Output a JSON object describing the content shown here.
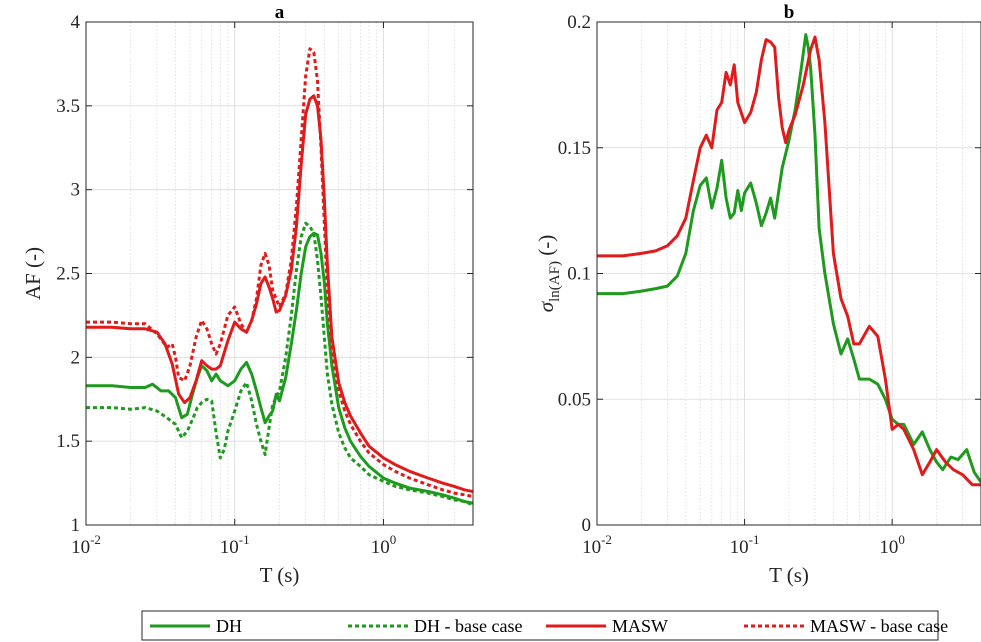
{
  "chart_data": [
    {
      "type": "line",
      "title": "a",
      "xlabel": "T (s)",
      "ylabel": "AF (-)",
      "xscale": "log",
      "xlim": [
        0.01,
        4
      ],
      "ylim": [
        1,
        4
      ],
      "xticks": [
        {
          "base": "10",
          "exp": "-2",
          "value": 0.01
        },
        {
          "base": "10",
          "exp": "-1",
          "value": 0.1
        },
        {
          "base": "10",
          "exp": "0",
          "value": 1
        }
      ],
      "yticks": [
        "1",
        "1.5",
        "2",
        "2.5",
        "3",
        "3.5",
        "4"
      ],
      "grid": true,
      "series": [
        {
          "name": "DH",
          "color": "#1e9a1e",
          "dashed": false,
          "x": [
            0.01,
            0.015,
            0.02,
            0.025,
            0.028,
            0.032,
            0.036,
            0.04,
            0.044,
            0.048,
            0.052,
            0.056,
            0.06,
            0.065,
            0.07,
            0.075,
            0.08,
            0.09,
            0.1,
            0.11,
            0.12,
            0.13,
            0.14,
            0.15,
            0.16,
            0.17,
            0.18,
            0.19,
            0.2,
            0.22,
            0.24,
            0.26,
            0.28,
            0.3,
            0.32,
            0.34,
            0.36,
            0.38,
            0.4,
            0.42,
            0.45,
            0.5,
            0.55,
            0.6,
            0.7,
            0.8,
            1.0,
            1.2,
            1.5,
            2.0,
            2.5,
            3.0,
            3.5,
            4.0
          ],
          "y": [
            1.83,
            1.83,
            1.82,
            1.82,
            1.84,
            1.8,
            1.8,
            1.76,
            1.64,
            1.66,
            1.78,
            1.88,
            1.95,
            1.92,
            1.86,
            1.9,
            1.86,
            1.83,
            1.86,
            1.93,
            1.97,
            1.9,
            1.8,
            1.7,
            1.61,
            1.65,
            1.68,
            1.78,
            1.74,
            1.88,
            2.08,
            2.28,
            2.5,
            2.66,
            2.72,
            2.74,
            2.73,
            2.62,
            2.45,
            2.2,
            1.95,
            1.7,
            1.58,
            1.5,
            1.41,
            1.35,
            1.28,
            1.25,
            1.22,
            1.2,
            1.18,
            1.16,
            1.14,
            1.13
          ]
        },
        {
          "name": "DH - base case",
          "color": "#1e9a1e",
          "dashed": true,
          "x": [
            0.01,
            0.015,
            0.02,
            0.025,
            0.03,
            0.035,
            0.04,
            0.044,
            0.048,
            0.052,
            0.056,
            0.06,
            0.065,
            0.07,
            0.075,
            0.08,
            0.085,
            0.09,
            0.1,
            0.11,
            0.12,
            0.13,
            0.14,
            0.15,
            0.16,
            0.17,
            0.18,
            0.2,
            0.22,
            0.24,
            0.26,
            0.28,
            0.3,
            0.32,
            0.34,
            0.36,
            0.38,
            0.4,
            0.42,
            0.45,
            0.5,
            0.55,
            0.6,
            0.7,
            0.8,
            1.0,
            1.2,
            1.5,
            2.0,
            2.5,
            3.0,
            3.5,
            4.0
          ],
          "y": [
            1.7,
            1.7,
            1.69,
            1.7,
            1.68,
            1.64,
            1.6,
            1.52,
            1.56,
            1.63,
            1.7,
            1.73,
            1.75,
            1.74,
            1.55,
            1.4,
            1.45,
            1.56,
            1.68,
            1.8,
            1.85,
            1.74,
            1.6,
            1.5,
            1.42,
            1.58,
            1.72,
            1.8,
            2.0,
            2.25,
            2.52,
            2.72,
            2.8,
            2.78,
            2.74,
            2.58,
            2.36,
            2.12,
            1.9,
            1.72,
            1.55,
            1.46,
            1.4,
            1.35,
            1.3,
            1.26,
            1.23,
            1.21,
            1.19,
            1.17,
            1.15,
            1.14,
            1.12
          ]
        },
        {
          "name": "MASW",
          "color": "#e01b1b",
          "dashed": false,
          "x": [
            0.01,
            0.015,
            0.02,
            0.025,
            0.03,
            0.034,
            0.038,
            0.042,
            0.046,
            0.05,
            0.055,
            0.06,
            0.065,
            0.07,
            0.075,
            0.08,
            0.09,
            0.1,
            0.11,
            0.12,
            0.13,
            0.14,
            0.15,
            0.16,
            0.17,
            0.18,
            0.19,
            0.2,
            0.22,
            0.24,
            0.26,
            0.28,
            0.3,
            0.32,
            0.34,
            0.36,
            0.38,
            0.4,
            0.42,
            0.45,
            0.5,
            0.55,
            0.6,
            0.7,
            0.8,
            1.0,
            1.2,
            1.5,
            2.0,
            2.5,
            3.0,
            3.5,
            4.0
          ],
          "y": [
            2.18,
            2.18,
            2.17,
            2.17,
            2.15,
            2.08,
            1.96,
            1.78,
            1.73,
            1.76,
            1.86,
            1.98,
            1.95,
            1.93,
            1.93,
            1.95,
            2.1,
            2.21,
            2.17,
            2.15,
            2.22,
            2.32,
            2.44,
            2.48,
            2.42,
            2.35,
            2.27,
            2.28,
            2.37,
            2.52,
            2.78,
            3.15,
            3.45,
            3.54,
            3.56,
            3.5,
            3.3,
            2.95,
            2.55,
            2.12,
            1.85,
            1.73,
            1.65,
            1.55,
            1.47,
            1.4,
            1.36,
            1.32,
            1.28,
            1.25,
            1.23,
            1.21,
            1.2
          ]
        },
        {
          "name": "MASW - base case",
          "color": "#e01b1b",
          "dashed": true,
          "x": [
            0.01,
            0.015,
            0.02,
            0.025,
            0.03,
            0.035,
            0.038,
            0.04,
            0.042,
            0.046,
            0.05,
            0.055,
            0.06,
            0.065,
            0.07,
            0.075,
            0.08,
            0.09,
            0.1,
            0.11,
            0.12,
            0.13,
            0.14,
            0.15,
            0.16,
            0.17,
            0.18,
            0.2,
            0.22,
            0.24,
            0.26,
            0.28,
            0.3,
            0.32,
            0.34,
            0.36,
            0.38,
            0.4,
            0.42,
            0.45,
            0.5,
            0.55,
            0.6,
            0.7,
            0.8,
            1.0,
            1.2,
            1.5,
            2.0,
            2.5,
            3.0,
            3.5,
            4.0
          ],
          "y": [
            2.21,
            2.21,
            2.2,
            2.2,
            2.14,
            2.06,
            2.08,
            2.0,
            1.88,
            1.86,
            1.95,
            2.12,
            2.22,
            2.17,
            2.08,
            2.02,
            2.08,
            2.25,
            2.3,
            2.2,
            2.15,
            2.22,
            2.35,
            2.55,
            2.62,
            2.55,
            2.4,
            2.3,
            2.38,
            2.58,
            2.9,
            3.3,
            3.68,
            3.84,
            3.82,
            3.65,
            3.25,
            2.8,
            2.4,
            2.05,
            1.8,
            1.68,
            1.6,
            1.5,
            1.43,
            1.36,
            1.32,
            1.28,
            1.24,
            1.21,
            1.19,
            1.18,
            1.17
          ]
        }
      ]
    },
    {
      "type": "line",
      "title": "b",
      "xlabel": "T (s)",
      "ylabel_symbol": "σ",
      "ylabel_sub": "ln(AF)",
      "ylabel_unit": "(-)",
      "xscale": "log",
      "xlim": [
        0.01,
        4
      ],
      "ylim": [
        0,
        0.2
      ],
      "xticks": [
        {
          "base": "10",
          "exp": "-2",
          "value": 0.01
        },
        {
          "base": "10",
          "exp": "-1",
          "value": 0.1
        },
        {
          "base": "10",
          "exp": "0",
          "value": 1
        }
      ],
      "yticks": [
        "0",
        "0.05",
        "0.1",
        "0.15",
        "0.2"
      ],
      "grid": true,
      "series": [
        {
          "name": "DH",
          "color": "#1e9a1e",
          "dashed": false,
          "x": [
            0.01,
            0.015,
            0.02,
            0.025,
            0.03,
            0.035,
            0.04,
            0.045,
            0.05,
            0.055,
            0.06,
            0.065,
            0.07,
            0.075,
            0.08,
            0.085,
            0.09,
            0.095,
            0.1,
            0.11,
            0.12,
            0.13,
            0.14,
            0.15,
            0.16,
            0.18,
            0.2,
            0.22,
            0.24,
            0.26,
            0.27,
            0.28,
            0.3,
            0.32,
            0.35,
            0.4,
            0.45,
            0.5,
            0.55,
            0.6,
            0.7,
            0.8,
            0.9,
            1.0,
            1.1,
            1.2,
            1.4,
            1.6,
            1.8,
            2.0,
            2.2,
            2.5,
            2.8,
            3.2,
            3.6,
            4.0
          ],
          "y": [
            0.092,
            0.092,
            0.093,
            0.094,
            0.095,
            0.099,
            0.108,
            0.125,
            0.135,
            0.138,
            0.126,
            0.134,
            0.145,
            0.13,
            0.122,
            0.124,
            0.133,
            0.125,
            0.132,
            0.136,
            0.128,
            0.119,
            0.124,
            0.13,
            0.122,
            0.142,
            0.153,
            0.165,
            0.18,
            0.195,
            0.19,
            0.182,
            0.155,
            0.118,
            0.1,
            0.08,
            0.068,
            0.074,
            0.066,
            0.058,
            0.058,
            0.056,
            0.05,
            0.042,
            0.04,
            0.04,
            0.032,
            0.037,
            0.03,
            0.025,
            0.022,
            0.027,
            0.026,
            0.03,
            0.021,
            0.017
          ]
        },
        {
          "name": "MASW",
          "color": "#e01b1b",
          "dashed": false,
          "x": [
            0.01,
            0.015,
            0.02,
            0.025,
            0.03,
            0.035,
            0.04,
            0.045,
            0.05,
            0.055,
            0.06,
            0.065,
            0.07,
            0.075,
            0.08,
            0.085,
            0.09,
            0.1,
            0.11,
            0.12,
            0.13,
            0.14,
            0.15,
            0.16,
            0.17,
            0.18,
            0.19,
            0.2,
            0.22,
            0.25,
            0.28,
            0.3,
            0.32,
            0.35,
            0.4,
            0.45,
            0.5,
            0.55,
            0.6,
            0.7,
            0.8,
            0.9,
            1.0,
            1.1,
            1.2,
            1.4,
            1.6,
            1.8,
            2.0,
            2.3,
            2.6,
            3.0,
            3.5,
            4.0
          ],
          "y": [
            0.107,
            0.107,
            0.108,
            0.109,
            0.111,
            0.115,
            0.122,
            0.137,
            0.15,
            0.155,
            0.15,
            0.165,
            0.168,
            0.18,
            0.175,
            0.183,
            0.168,
            0.16,
            0.164,
            0.172,
            0.185,
            0.193,
            0.192,
            0.19,
            0.17,
            0.158,
            0.152,
            0.157,
            0.163,
            0.175,
            0.189,
            0.194,
            0.185,
            0.16,
            0.108,
            0.09,
            0.083,
            0.072,
            0.072,
            0.079,
            0.075,
            0.058,
            0.038,
            0.04,
            0.038,
            0.03,
            0.02,
            0.025,
            0.03,
            0.025,
            0.022,
            0.02,
            0.016,
            0.016
          ]
        }
      ]
    }
  ],
  "legend": {
    "placement": "bottom",
    "items": [
      {
        "label": "DH",
        "color": "#1e9a1e",
        "dashed": false
      },
      {
        "label": "DH - base case",
        "color": "#1e9a1e",
        "dashed": true
      },
      {
        "label": "MASW",
        "color": "#e01b1b",
        "dashed": false
      },
      {
        "label": "MASW - base case",
        "color": "#e01b1b",
        "dashed": true
      }
    ]
  }
}
